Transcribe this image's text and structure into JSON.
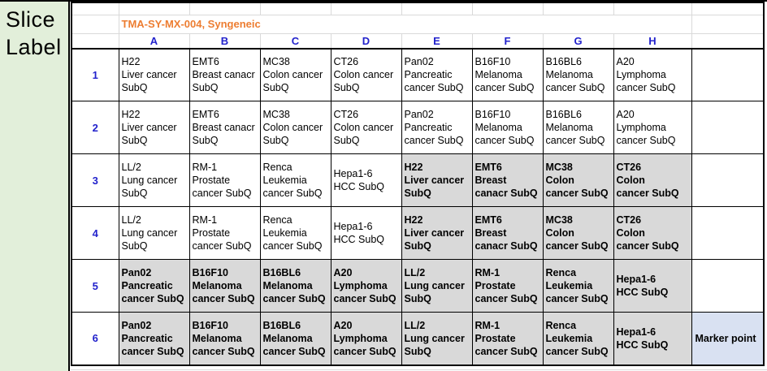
{
  "slice_panel": {
    "line1": "Slice",
    "line2": "Label"
  },
  "sheet": {
    "title": "TMA-SY-MX-004, Syngeneic",
    "column_headers": [
      "A",
      "B",
      "C",
      "D",
      "E",
      "F",
      "G",
      "H"
    ],
    "rows": [
      {
        "number": "1",
        "cells": [
          {
            "text": "H22\nLiver cancer\nSubQ",
            "shaded": false
          },
          {
            "text": "EMT6\nBreast canacr\nSubQ",
            "shaded": false
          },
          {
            "text": "MC38\nColon cancer\nSubQ",
            "shaded": false
          },
          {
            "text": "CT26\nColon cancer\nSubQ",
            "shaded": false
          },
          {
            "text": "Pan02\nPancreatic\ncancer SubQ",
            "shaded": false
          },
          {
            "text": "B16F10\nMelanoma\ncancer SubQ",
            "shaded": false
          },
          {
            "text": "B16BL6\nMelanoma\ncancer SubQ",
            "shaded": false
          },
          {
            "text": "A20\nLymphoma\ncancer SubQ",
            "shaded": false
          }
        ],
        "extra": {
          "text": "",
          "marker": false
        }
      },
      {
        "number": "2",
        "cells": [
          {
            "text": "H22\nLiver cancer\nSubQ",
            "shaded": false
          },
          {
            "text": "EMT6\nBreast canacr\nSubQ",
            "shaded": false
          },
          {
            "text": "MC38\nColon cancer\nSubQ",
            "shaded": false
          },
          {
            "text": "CT26\nColon cancer\nSubQ",
            "shaded": false
          },
          {
            "text": "Pan02\nPancreatic\ncancer SubQ",
            "shaded": false
          },
          {
            "text": "B16F10\nMelanoma\ncancer SubQ",
            "shaded": false
          },
          {
            "text": "B16BL6\nMelanoma\ncancer SubQ",
            "shaded": false
          },
          {
            "text": "A20\nLymphoma\ncancer SubQ",
            "shaded": false
          }
        ],
        "extra": {
          "text": "",
          "marker": false
        }
      },
      {
        "number": "3",
        "cells": [
          {
            "text": "LL/2\nLung cancer\nSubQ",
            "shaded": false
          },
          {
            "text": "RM-1\nProstate\ncancer SubQ",
            "shaded": false
          },
          {
            "text": "Renca\nLeukemia\ncancer SubQ",
            "shaded": false
          },
          {
            "text": "Hepa1-6\nHCC SubQ",
            "shaded": false
          },
          {
            "text": "H22\nLiver cancer\nSubQ",
            "shaded": true
          },
          {
            "text": "EMT6\nBreast\ncanacr SubQ",
            "shaded": true
          },
          {
            "text": "MC38\nColon\ncancer SubQ",
            "shaded": true
          },
          {
            "text": "CT26\nColon\ncancer SubQ",
            "shaded": true
          }
        ],
        "extra": {
          "text": "",
          "marker": false
        }
      },
      {
        "number": "4",
        "cells": [
          {
            "text": "LL/2\nLung cancer\nSubQ",
            "shaded": false
          },
          {
            "text": "RM-1\nProstate\ncancer SubQ",
            "shaded": false
          },
          {
            "text": "Renca\nLeukemia\ncancer SubQ",
            "shaded": false
          },
          {
            "text": "Hepa1-6\nHCC SubQ",
            "shaded": false
          },
          {
            "text": "H22\nLiver cancer\nSubQ",
            "shaded": true
          },
          {
            "text": "EMT6\nBreast\ncanacr SubQ",
            "shaded": true
          },
          {
            "text": "MC38\nColon\ncancer SubQ",
            "shaded": true
          },
          {
            "text": "CT26\nColon\ncancer SubQ",
            "shaded": true
          }
        ],
        "extra": {
          "text": "",
          "marker": false
        }
      },
      {
        "number": "5",
        "cells": [
          {
            "text": "Pan02\nPancreatic\ncancer SubQ",
            "shaded": true
          },
          {
            "text": "B16F10\nMelanoma\ncancer SubQ",
            "shaded": true
          },
          {
            "text": "B16BL6\nMelanoma\ncancer SubQ",
            "shaded": true
          },
          {
            "text": "A20\nLymphoma\ncancer SubQ",
            "shaded": true
          },
          {
            "text": "LL/2\nLung cancer\nSubQ",
            "shaded": true
          },
          {
            "text": "RM-1\nProstate\ncancer SubQ",
            "shaded": true
          },
          {
            "text": "Renca\nLeukemia\ncancer SubQ",
            "shaded": true
          },
          {
            "text": "Hepa1-6\nHCC SubQ",
            "shaded": true
          }
        ],
        "extra": {
          "text": "",
          "marker": false
        }
      },
      {
        "number": "6",
        "cells": [
          {
            "text": "Pan02\nPancreatic\ncancer SubQ",
            "shaded": true
          },
          {
            "text": "B16F10\nMelanoma\ncancer SubQ",
            "shaded": true
          },
          {
            "text": "B16BL6\nMelanoma\ncancer SubQ",
            "shaded": true
          },
          {
            "text": "A20\nLymphoma\ncancer SubQ",
            "shaded": true
          },
          {
            "text": "LL/2\nLung cancer\nSubQ",
            "shaded": true
          },
          {
            "text": "RM-1\nProstate\ncancer SubQ",
            "shaded": true
          },
          {
            "text": "Renca\nLeukemia\ncancer SubQ",
            "shaded": true
          },
          {
            "text": "Hepa1-6\nHCC SubQ",
            "shaded": true
          }
        ],
        "extra": {
          "text": "Marker point",
          "marker": true
        }
      }
    ]
  },
  "colors": {
    "panel_green": "#e2efda",
    "shaded_cell_gray": "#d9d9d9",
    "marker_cell_blue": "#d9e1f2",
    "title_orange": "#ed7d31",
    "header_blue": "#2222cc",
    "gridline_gray": "#d9d9d9",
    "border_black": "#000000"
  }
}
